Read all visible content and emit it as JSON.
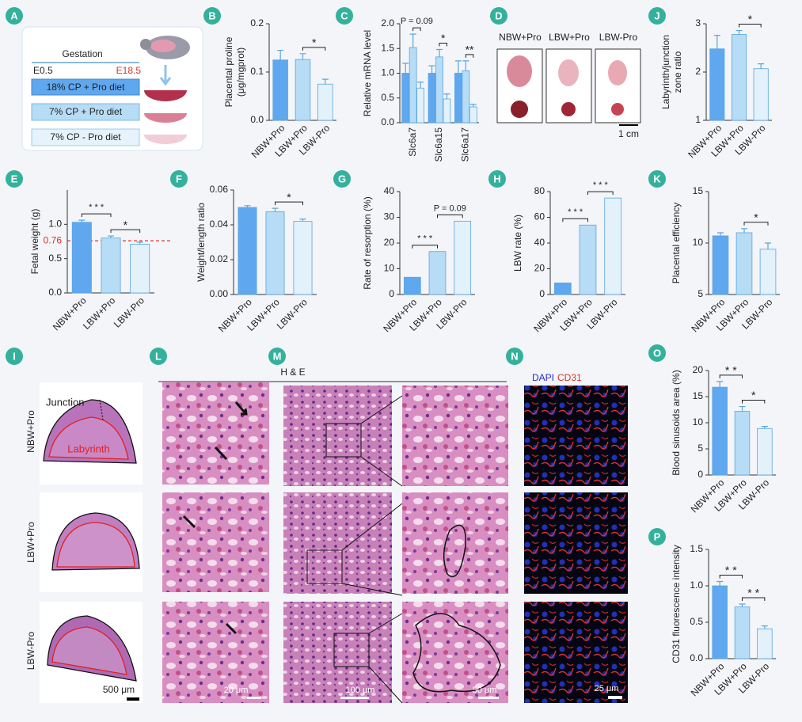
{
  "chart_data": [
    {
      "type": "bar",
      "panel": "B",
      "ylabel": [
        "Placental proline",
        "(μg/mgprot)"
      ],
      "categories": [
        "NBW+Pro",
        "LBW+Pro",
        "LBW-Pro"
      ],
      "values": [
        0.125,
        0.126,
        0.075
      ],
      "errors": [
        0.02,
        0.012,
        0.01
      ],
      "colors": [
        "#5fa8ef",
        "#b7dcf5",
        "#e3f1fb"
      ],
      "edgecolor": "#5aa5e0",
      "ylim": [
        0,
        0.2
      ],
      "yticks": [
        {
          "value": 0,
          "label": "0.0"
        },
        0.1,
        0.2
      ],
      "significance": [
        {
          "from": 1,
          "to": 2,
          "label": "*"
        }
      ]
    },
    {
      "type": "bar",
      "panel": "C",
      "ylabel": "Relative mRNA level",
      "categories": [
        "Slc6a7",
        "Slc6a15",
        "Slc6a17"
      ],
      "series": [
        {
          "color": "#5fa8ef",
          "values": [
            1.0,
            1.0,
            1.0
          ],
          "errors": [
            0.2,
            0.15,
            0.25
          ]
        },
        {
          "color": "#b7dcf5",
          "values": [
            1.52,
            1.33,
            1.05
          ],
          "errors": [
            0.27,
            0.15,
            0.2
          ]
        },
        {
          "color": "#e3f1fb",
          "values": [
            0.7,
            0.48,
            0.32
          ],
          "errors": [
            0.12,
            0.1,
            0.05
          ]
        }
      ],
      "edgecolor": "#5aa5e0",
      "ylim": [
        0,
        2
      ],
      "yticks": [
        {
          "value": 0,
          "label": "0.0"
        },
        0.5,
        {
          "value": 1,
          "label": "1.0"
        },
        1.5,
        {
          "value": 2,
          "label": "2.0"
        }
      ],
      "significance": [
        {
          "group": 0,
          "from": 1,
          "to": 2,
          "label": "P = 0.09"
        },
        {
          "group": 1,
          "from": 1,
          "to": 2,
          "label": "*"
        },
        {
          "group": 2,
          "from": 1,
          "to": 2,
          "label": "**"
        }
      ]
    },
    {
      "type": "bar",
      "panel": "J",
      "ylabel": [
        "Labyrinth/junction",
        "zone ratio"
      ],
      "categories": [
        "NBW+Pro",
        "LBW+Pro",
        "LBW-Pro"
      ],
      "values": [
        2.48,
        2.78,
        2.07
      ],
      "errors": [
        0.28,
        0.08,
        0.1
      ],
      "colors": [
        "#5fa8ef",
        "#b7dcf5",
        "#e3f1fb"
      ],
      "edgecolor": "#5aa5e0",
      "ylim": [
        1,
        3
      ],
      "yticks": [
        1,
        2,
        3
      ],
      "significance": [
        {
          "from": 1,
          "to": 2,
          "label": "*"
        }
      ]
    },
    {
      "type": "bar",
      "panel": "E",
      "ylabel": "Fetal weight (g)",
      "categories": [
        "NBW+Pro",
        "LBW+Pro",
        "LBW-Pro"
      ],
      "values": [
        1.03,
        0.8,
        0.71
      ],
      "errors": [
        0.03,
        0.03,
        0.03
      ],
      "colors": [
        "#5fa8ef",
        "#b7dcf5",
        "#e3f1fb"
      ],
      "edgecolor": "#5aa5e0",
      "ylim": [
        0,
        1.5
      ],
      "yticks": [
        {
          "value": 0,
          "label": "0.0"
        },
        0.5,
        {
          "value": 1,
          "label": "1.0"
        }
      ],
      "reference_line": {
        "value": 0.76,
        "color": "#d9342b"
      },
      "significance": [
        {
          "from": 0,
          "to": 1,
          "label": "* * *"
        },
        {
          "from": 1,
          "to": 2,
          "label": "*"
        }
      ]
    },
    {
      "type": "bar",
      "panel": "F",
      "ylabel": "Weight/length ratio",
      "categories": [
        "NBW+Pro",
        "LBW+Pro",
        "LBW-Pro"
      ],
      "values": [
        0.05,
        0.0475,
        0.042
      ],
      "errors": [
        0.001,
        0.002,
        0.0013
      ],
      "colors": [
        "#5fa8ef",
        "#b7dcf5",
        "#e3f1fb"
      ],
      "edgecolor": "#5aa5e0",
      "ylim": [
        0,
        0.06
      ],
      "yticks": [
        {
          "value": 0,
          "label": "0.00"
        },
        0.02,
        0.04,
        0.06
      ],
      "significance": [
        {
          "from": 1,
          "to": 2,
          "label": "*"
        }
      ]
    },
    {
      "type": "bar",
      "panel": "G",
      "ylabel": "Rate of resorption (%)",
      "categories": [
        "NBW+Pro",
        "LBW+Pro",
        "LBW-Pro"
      ],
      "values": [
        6.7,
        16.7,
        28.5
      ],
      "colors": [
        "#5fa8ef",
        "#b7dcf5",
        "#e3f1fb"
      ],
      "edgecolor": "#5aa5e0",
      "ylim": [
        0,
        40
      ],
      "yticks": [
        0,
        10,
        20,
        30,
        40
      ],
      "significance": [
        {
          "from": 0,
          "to": 1,
          "label": "* * *"
        },
        {
          "from": 1,
          "to": 2,
          "label": "P = 0.09"
        }
      ]
    },
    {
      "type": "bar",
      "panel": "H",
      "ylabel": "LBW rate (%)",
      "categories": [
        "NBW+Pro",
        "LBW+Pro",
        "LBW-Pro"
      ],
      "values": [
        9,
        54,
        75
      ],
      "colors": [
        "#5fa8ef",
        "#b7dcf5",
        "#e3f1fb"
      ],
      "edgecolor": "#5aa5e0",
      "ylim": [
        0,
        80
      ],
      "yticks": [
        0,
        20,
        40,
        60,
        80
      ],
      "significance": [
        {
          "from": 0,
          "to": 1,
          "label": "* * *"
        },
        {
          "from": 1,
          "to": 2,
          "label": "* * *"
        }
      ]
    },
    {
      "type": "bar",
      "panel": "K",
      "ylabel": "Placental efficiency",
      "categories": [
        "NBW+Pro",
        "LBW+Pro",
        "LBW-Pro"
      ],
      "values": [
        10.7,
        11.0,
        9.4
      ],
      "errors": [
        0.3,
        0.4,
        0.6
      ],
      "colors": [
        "#5fa8ef",
        "#b7dcf5",
        "#e3f1fb"
      ],
      "edgecolor": "#5aa5e0",
      "ylim": [
        5,
        15
      ],
      "yticks": [
        5,
        10,
        15
      ],
      "significance": [
        {
          "from": 1,
          "to": 2,
          "label": "*"
        }
      ]
    },
    {
      "type": "bar",
      "panel": "O",
      "ylabel": "Blood sinusoids area (%)",
      "categories": [
        "NBW+Pro",
        "LBW+Pro",
        "LBW-Pro"
      ],
      "values": [
        16.8,
        12.2,
        8.9
      ],
      "errors": [
        1.1,
        0.9,
        0.4
      ],
      "colors": [
        "#5fa8ef",
        "#b7dcf5",
        "#e3f1fb"
      ],
      "edgecolor": "#5aa5e0",
      "ylim": [
        0,
        20
      ],
      "yticks": [
        0,
        5,
        10,
        15,
        20
      ],
      "significance": [
        {
          "from": 0,
          "to": 1,
          "label": "* *"
        },
        {
          "from": 1,
          "to": 2,
          "label": "*"
        }
      ]
    },
    {
      "type": "bar",
      "panel": "P",
      "ylabel": "CD31 fluorescence intensity",
      "categories": [
        "NBW+Pro",
        "LBW+Pro",
        "LBW-Pro"
      ],
      "values": [
        1.0,
        0.71,
        0.41
      ],
      "errors": [
        0.06,
        0.04,
        0.04
      ],
      "colors": [
        "#5fa8ef",
        "#b7dcf5",
        "#e3f1fb"
      ],
      "edgecolor": "#5aa5e0",
      "ylim": [
        0,
        1.5
      ],
      "yticks": [
        {
          "value": 0,
          "label": "0.0"
        },
        0.5,
        {
          "value": 1,
          "label": "1.0"
        },
        1.5
      ],
      "significance": [
        {
          "from": 0,
          "to": 1,
          "label": "* *"
        },
        {
          "from": 1,
          "to": 2,
          "label": "* *"
        }
      ]
    }
  ],
  "panel_a": {
    "letter": "A",
    "gestation": "Gestation",
    "start": "E0.5",
    "end": "E18.5",
    "diets": [
      "18% CP + Pro diet",
      "7% CP + Pro diet",
      "7% CP - Pro diet"
    ]
  },
  "panel_d": {
    "letter": "D",
    "groups": [
      "NBW+Pro",
      "LBW+Pro",
      "LBW-Pro"
    ],
    "scale_bar": "1 cm"
  },
  "panel_i": {
    "letter": "I",
    "rows": [
      "NBW+Pro",
      "LBW+Pro",
      "LBW-Pro"
    ],
    "junction": "Junction",
    "labyrinth": "Labyrinth",
    "scale_bar": "500 μm"
  },
  "panel_l": {
    "letter": "L",
    "scale_bar": "20 μm"
  },
  "panel_m": {
    "letter": "M",
    "stain": "H & E",
    "scale_bars": [
      "100 μm",
      "50 μm"
    ]
  },
  "panel_n": {
    "letter": "N",
    "dapi": "DAPI",
    "cd31": "CD31",
    "scale_bar": "25 μm"
  }
}
